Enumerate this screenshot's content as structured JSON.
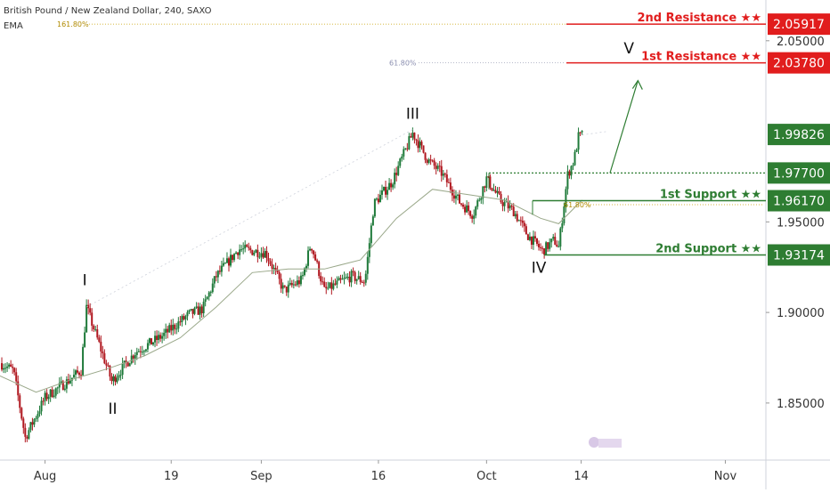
{
  "header": {
    "title": "British Pound / New Zealand Dollar, 240, SAXO",
    "indicator": "EMA"
  },
  "fib_labels": {
    "upper": "161.80%",
    "middle": "61.80%",
    "lower": "61.80%"
  },
  "levels": [
    {
      "label": "2nd Resistance ★★",
      "price": 2.05917,
      "price_text": "2.05917",
      "kind": "resistance",
      "color": "#e11d1d"
    },
    {
      "label": "1st Resistance ★★",
      "price": 2.0378,
      "price_text": "2.03780",
      "kind": "resistance",
      "color": "#e11d1d"
    },
    {
      "label": "",
      "price": 1.99826,
      "price_text": "1.99826",
      "kind": "last",
      "color": "#2e7d32"
    },
    {
      "label": "",
      "price": 1.977,
      "price_text": "1.97700",
      "kind": "pivot",
      "color": "#2e7d32"
    },
    {
      "label": "1st Support ★★",
      "price": 1.9617,
      "price_text": "1.96170",
      "kind": "support",
      "color": "#2e7d32"
    },
    {
      "label": "2nd Support ★★",
      "price": 1.93174,
      "price_text": "1.93174",
      "kind": "support",
      "color": "#2e7d32"
    }
  ],
  "wave_labels": [
    {
      "text": "I",
      "t": 9.4,
      "price": 1.915
    },
    {
      "text": "II",
      "t": 12.5,
      "price": 1.844
    },
    {
      "text": "III",
      "t": 45.8,
      "price": 2.007
    },
    {
      "text": "IV",
      "t": 59.8,
      "price": 1.922
    },
    {
      "text": "V",
      "t": 69.8,
      "price": 2.043
    }
  ],
  "chart_data": {
    "type": "candlestick",
    "title": "British Pound / New Zealand Dollar, 240, SAXO",
    "x_axis": {
      "ticks": [
        "Aug",
        "19",
        "Sep",
        "16",
        "Oct",
        "14",
        "Nov"
      ],
      "tick_t": [
        5,
        19,
        29,
        42,
        54,
        64.5,
        80.5
      ],
      "range": [
        0,
        85
      ]
    },
    "y_axis": {
      "ticks": [
        "1.85000",
        "1.90000",
        "1.95000",
        "2.05000"
      ],
      "tick_values": [
        1.85,
        1.9,
        1.95,
        2.05
      ],
      "range": [
        1.8185,
        2.0725
      ]
    },
    "anchors": [
      {
        "t": 0,
        "price": 1.872
      },
      {
        "t": 1.5,
        "price": 1.868
      },
      {
        "t": 2.8,
        "price": 1.831
      },
      {
        "t": 5,
        "price": 1.853
      },
      {
        "t": 7.5,
        "price": 1.862
      },
      {
        "t": 9,
        "price": 1.868
      },
      {
        "t": 9.6,
        "price": 1.903
      },
      {
        "t": 12.4,
        "price": 1.862
      },
      {
        "t": 15,
        "price": 1.878
      },
      {
        "t": 18,
        "price": 1.887
      },
      {
        "t": 21,
        "price": 1.899
      },
      {
        "t": 22.5,
        "price": 1.902
      },
      {
        "t": 24,
        "price": 1.92
      },
      {
        "t": 26.5,
        "price": 1.935
      },
      {
        "t": 29.5,
        "price": 1.933
      },
      {
        "t": 31.5,
        "price": 1.912
      },
      {
        "t": 33.5,
        "price": 1.918
      },
      {
        "t": 34.5,
        "price": 1.938
      },
      {
        "t": 36,
        "price": 1.912
      },
      {
        "t": 39,
        "price": 1.92
      },
      {
        "t": 40.5,
        "price": 1.917
      },
      {
        "t": 41.5,
        "price": 1.96
      },
      {
        "t": 43.5,
        "price": 1.972
      },
      {
        "t": 45.8,
        "price": 1.999
      },
      {
        "t": 47.5,
        "price": 1.984
      },
      {
        "t": 49,
        "price": 1.977
      },
      {
        "t": 51,
        "price": 1.961
      },
      {
        "t": 52.5,
        "price": 1.954
      },
      {
        "t": 54,
        "price": 1.974
      },
      {
        "t": 55.5,
        "price": 1.962
      },
      {
        "t": 57,
        "price": 1.956
      },
      {
        "t": 58.5,
        "price": 1.943
      },
      {
        "t": 60.2,
        "price": 1.934
      },
      {
        "t": 61.5,
        "price": 1.94
      },
      {
        "t": 62,
        "price": 1.936
      },
      {
        "t": 63,
        "price": 1.976
      },
      {
        "t": 63.7,
        "price": 1.984
      },
      {
        "t": 64.2,
        "price": 1.997
      },
      {
        "t": 64.6,
        "price": 1.998
      }
    ],
    "ema": [
      {
        "t": 0,
        "price": 1.865
      },
      {
        "t": 4,
        "price": 1.856
      },
      {
        "t": 8,
        "price": 1.863
      },
      {
        "t": 12,
        "price": 1.869
      },
      {
        "t": 16,
        "price": 1.876
      },
      {
        "t": 20,
        "price": 1.886
      },
      {
        "t": 24,
        "price": 1.903
      },
      {
        "t": 28,
        "price": 1.922
      },
      {
        "t": 32,
        "price": 1.924
      },
      {
        "t": 36,
        "price": 1.924
      },
      {
        "t": 40,
        "price": 1.929
      },
      {
        "t": 44,
        "price": 1.952
      },
      {
        "t": 48,
        "price": 1.968
      },
      {
        "t": 52,
        "price": 1.965
      },
      {
        "t": 56,
        "price": 1.962
      },
      {
        "t": 60,
        "price": 1.952
      },
      {
        "t": 62,
        "price": 1.949
      },
      {
        "t": 64.6,
        "price": 1.962
      }
    ],
    "projection": {
      "from": {
        "t": 67.7,
        "price": 1.977
      },
      "to": {
        "t": 70.8,
        "price": 2.028
      }
    }
  }
}
